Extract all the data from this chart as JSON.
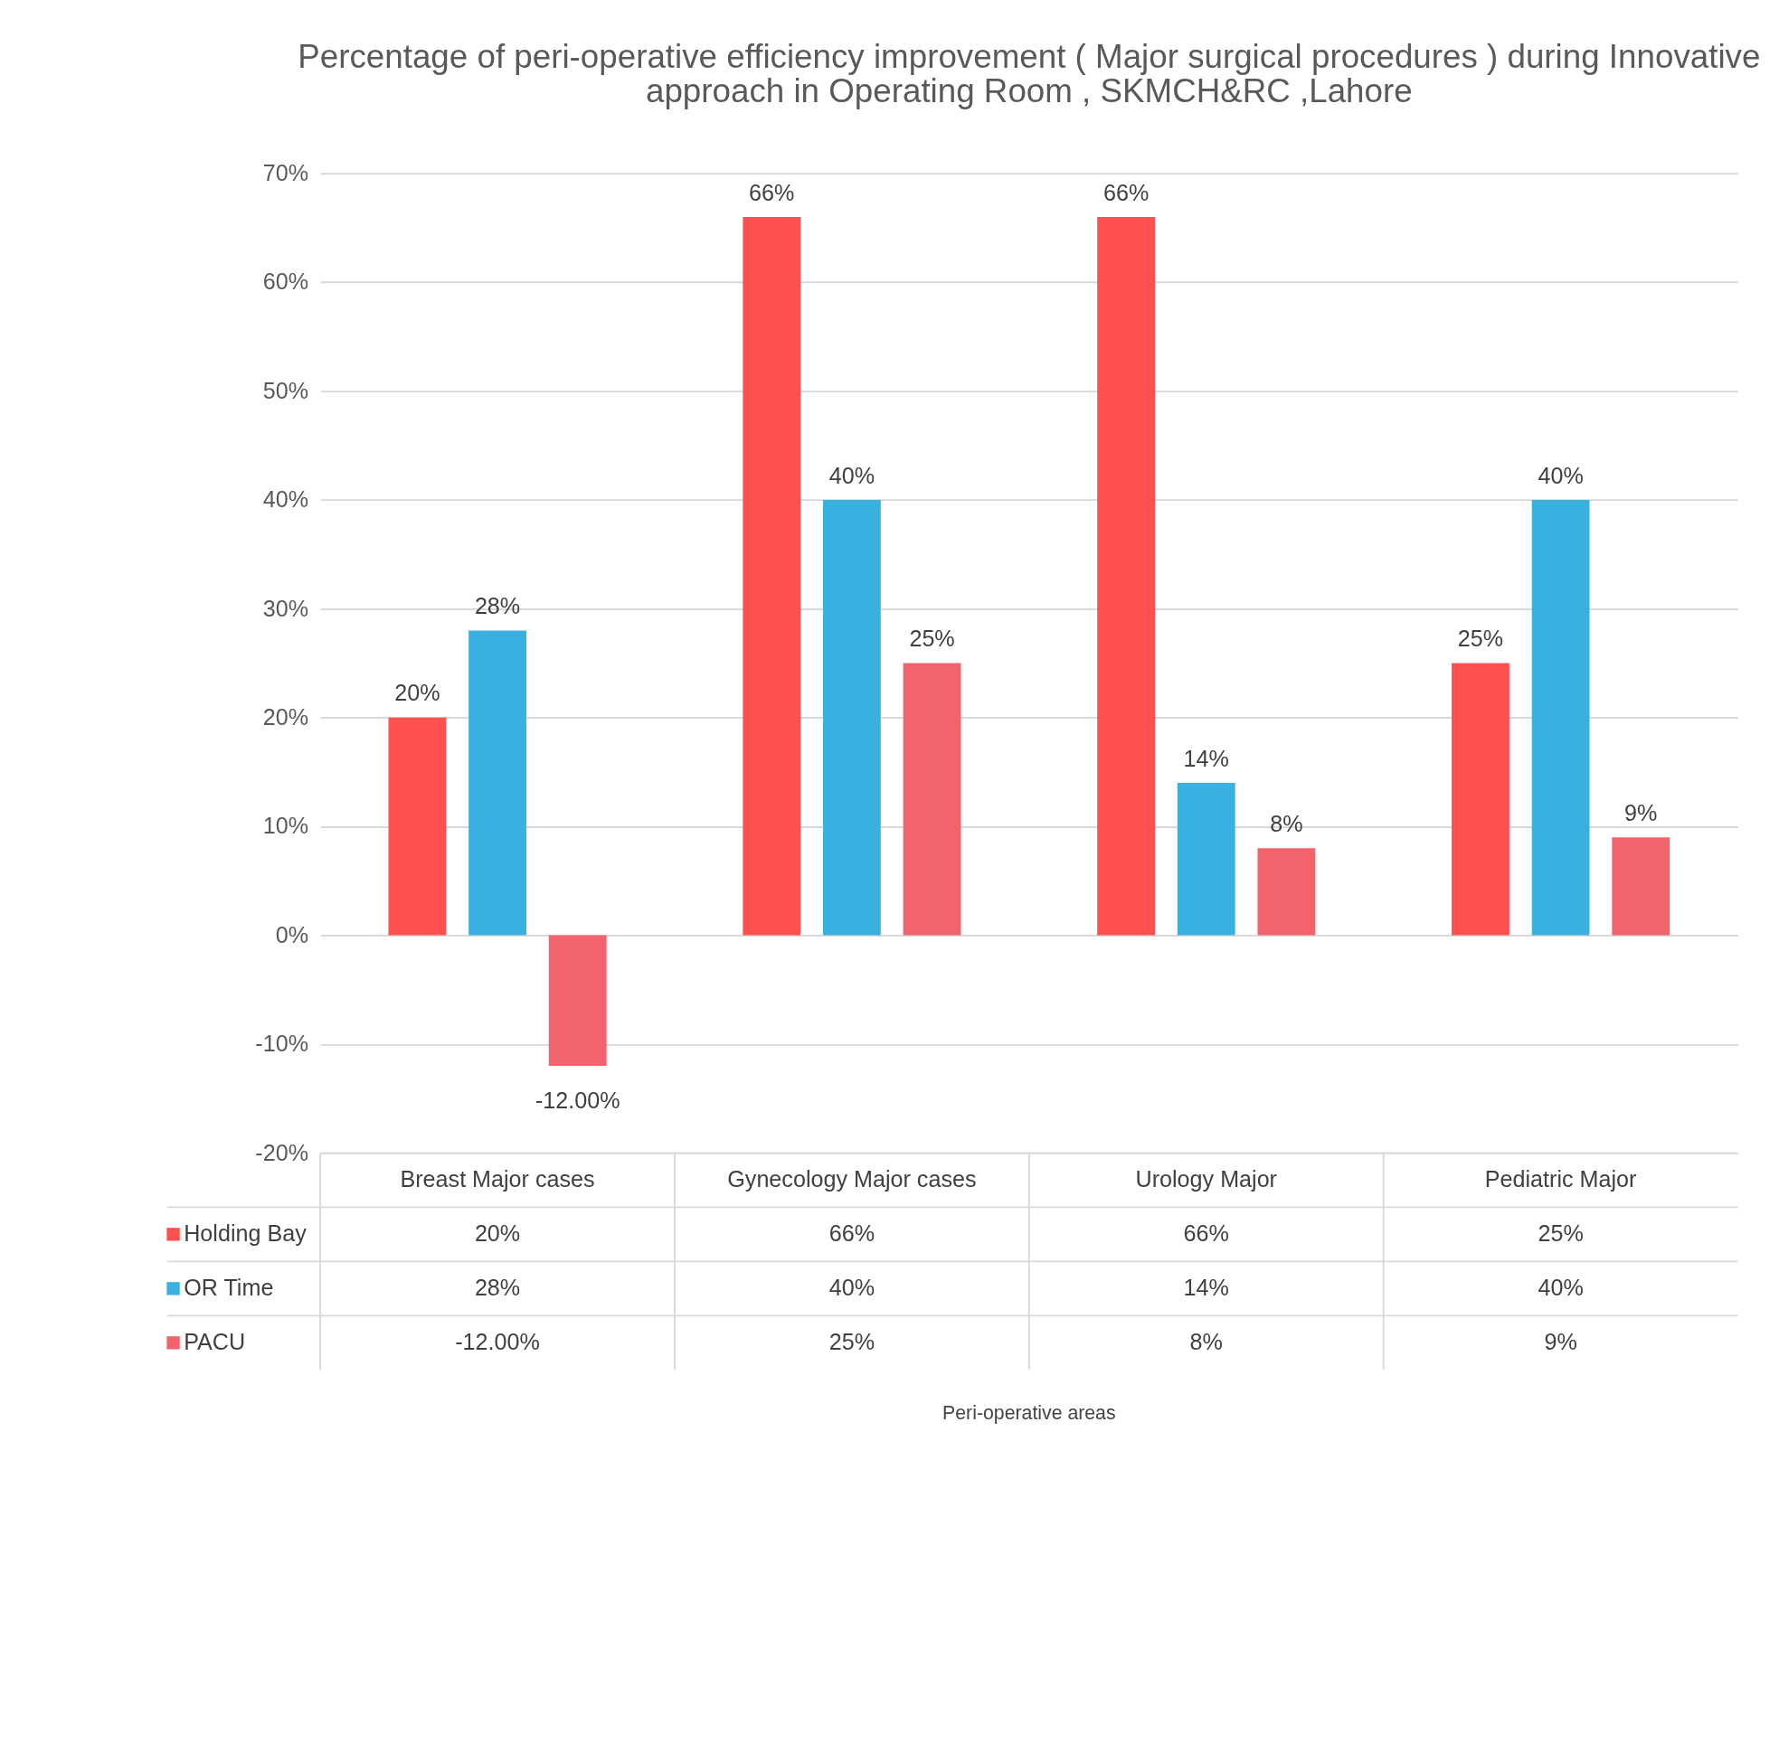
{
  "chart_data": {
    "type": "bar",
    "title": [
      "Percentage of peri-operative efficiency improvement ( Major surgical procedures ) during Innovative",
      "approach in Operating Room , SKMCH&RC ,Lahore"
    ],
    "annotations": [
      "Peri-operative areas"
    ],
    "categories": [
      "Breast Major cases",
      "Gynecology Major cases",
      "Urology Major",
      "Pediatric Major"
    ],
    "series": [
      {
        "name": "Holding Bay",
        "color": "#ff5050",
        "values": [
          20,
          66,
          66,
          25
        ],
        "value_labels": [
          "20%",
          "66%",
          "66%",
          "25%"
        ]
      },
      {
        "name": "OR Time",
        "color": "#3ab0e0",
        "values": [
          28,
          40,
          14,
          40
        ],
        "value_labels": [
          "28%",
          "40%",
          "14%",
          "40%"
        ]
      },
      {
        "name": "PACU",
        "color": "#f2636b",
        "values": [
          -12,
          25,
          8,
          9
        ],
        "value_labels": [
          "-12.00%",
          "25%",
          "8%",
          "9%"
        ]
      }
    ],
    "ylim": [
      -20,
      70
    ],
    "yticks": [
      {
        "value": -20,
        "label": "-20%"
      },
      {
        "value": -10,
        "label": "-10%"
      },
      {
        "value": 0,
        "label": "0%"
      },
      {
        "value": 10,
        "label": "10%"
      },
      {
        "value": 20,
        "label": "20%"
      },
      {
        "value": 30,
        "label": "30%"
      },
      {
        "value": 40,
        "label": "40%"
      },
      {
        "value": 50,
        "label": "50%"
      },
      {
        "value": 60,
        "label": "60%"
      },
      {
        "value": 70,
        "label": "70%"
      }
    ],
    "grid": "y",
    "legend": "bottom left"
  }
}
